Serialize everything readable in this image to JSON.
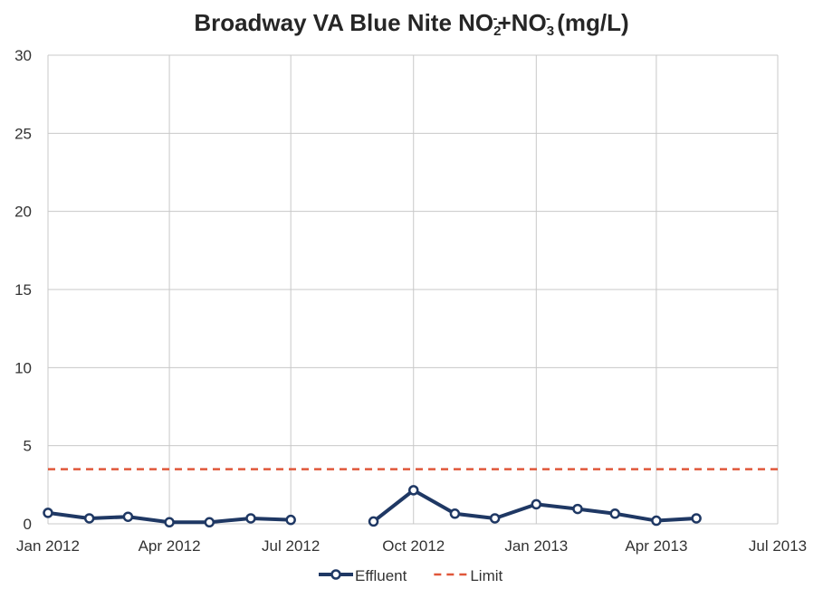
{
  "chart_data": {
    "type": "line",
    "title": "Broadway VA Blue Nite NO2-+NO3- (mg/L)",
    "title_parts": {
      "prefix": "Broadway VA Blue Nite NO",
      "sub1": "2",
      "sup1": "-",
      "mid": "+NO",
      "sub2": "3",
      "sup2": "-",
      "suffix": " (mg/L)"
    },
    "xlabel": "",
    "ylabel": "",
    "x_axis": {
      "type": "date",
      "range": [
        "2012-01-01",
        "2013-07-01"
      ],
      "ticks": [
        {
          "date": "2012-01-01",
          "label": "Jan 2012"
        },
        {
          "date": "2012-04-01",
          "label": "Apr 2012"
        },
        {
          "date": "2012-07-01",
          "label": "Jul 2012"
        },
        {
          "date": "2012-10-01",
          "label": "Oct 2012"
        },
        {
          "date": "2013-01-01",
          "label": "Jan 2013"
        },
        {
          "date": "2013-04-01",
          "label": "Apr 2013"
        },
        {
          "date": "2013-07-01",
          "label": "Jul 2013"
        }
      ]
    },
    "ylim": [
      0,
      30
    ],
    "y_ticks": [
      0,
      5,
      10,
      15,
      20,
      25,
      30
    ],
    "grid": true,
    "legend_position": "bottom",
    "series": [
      {
        "name": "Effluent",
        "color": "#1f3864",
        "style": "solid-markers",
        "points": [
          {
            "x": "2012-01-01",
            "y": 0.7
          },
          {
            "x": "2012-02-01",
            "y": 0.35
          },
          {
            "x": "2012-03-01",
            "y": 0.45
          },
          {
            "x": "2012-04-01",
            "y": 0.1
          },
          {
            "x": "2012-05-01",
            "y": 0.1
          },
          {
            "x": "2012-06-01",
            "y": 0.35
          },
          {
            "x": "2012-07-01",
            "y": 0.25
          },
          {
            "x": "2012-09-01",
            "y": 0.15
          },
          {
            "x": "2012-10-01",
            "y": 2.15
          },
          {
            "x": "2012-11-01",
            "y": 0.65
          },
          {
            "x": "2012-12-01",
            "y": 0.35
          },
          {
            "x": "2013-01-01",
            "y": 1.25
          },
          {
            "x": "2013-02-01",
            "y": 0.95
          },
          {
            "x": "2013-03-01",
            "y": 0.65
          },
          {
            "x": "2013-04-01",
            "y": 0.2
          },
          {
            "x": "2013-05-01",
            "y": 0.35
          }
        ],
        "segments": [
          [
            0,
            6
          ],
          [
            7,
            15
          ]
        ]
      },
      {
        "name": "Limit",
        "color": "#e0573a",
        "style": "dashed",
        "points": [
          {
            "x": "2012-01-01",
            "y": 3.5
          },
          {
            "x": "2013-07-01",
            "y": 3.5
          }
        ]
      }
    ]
  }
}
